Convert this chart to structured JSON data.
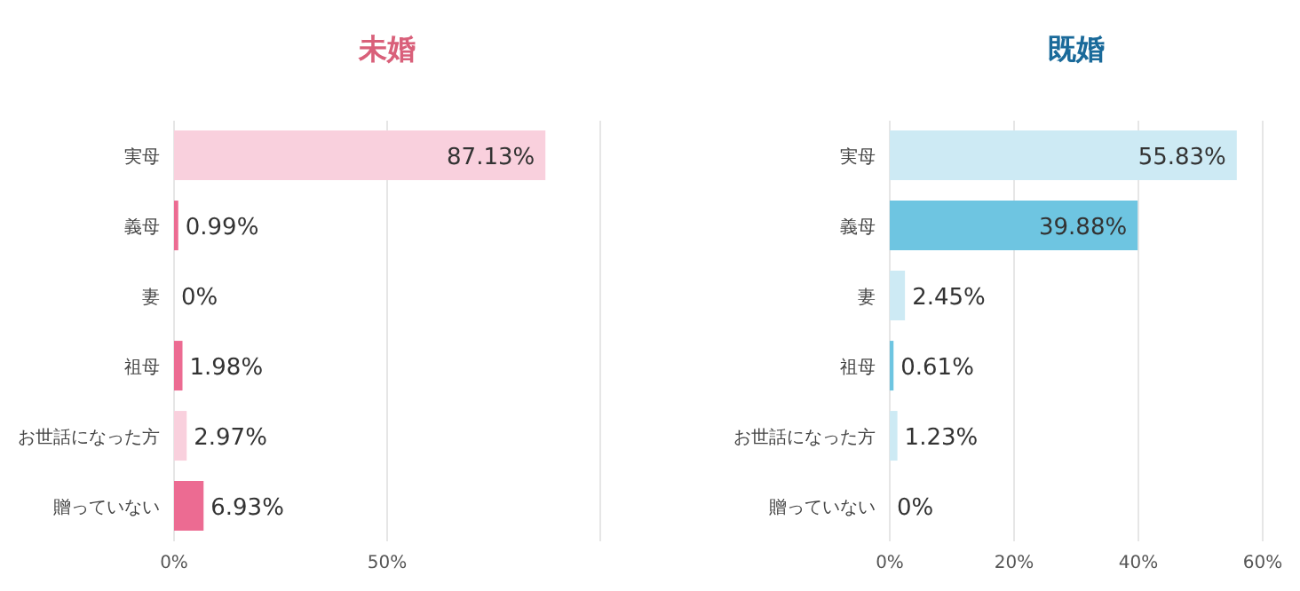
{
  "chart_data": [
    {
      "type": "bar",
      "orientation": "horizontal",
      "title": "未婚",
      "categories": [
        "実母",
        "義母",
        "妻",
        "祖母",
        "お世話になった方",
        "贈っていない"
      ],
      "values": [
        87.13,
        0.99,
        0,
        1.98,
        2.97,
        6.93
      ],
      "colors": [
        "#f9d0dd",
        "#ec6b92",
        "#f9d0dd",
        "#ec6b92",
        "#f9d0dd",
        "#ec6b92"
      ],
      "value_labels": [
        "87.13%",
        "0.99%",
        "0%",
        "1.98%",
        "2.97%",
        "6.93%"
      ],
      "xlim": [
        0,
        100
      ],
      "xticks": [
        {
          "value": 0,
          "label": "0%"
        },
        {
          "value": 50,
          "label": "50%"
        }
      ],
      "grid": "x"
    },
    {
      "type": "bar",
      "orientation": "horizontal",
      "title": "既婚",
      "categories": [
        "実母",
        "義母",
        "妻",
        "祖母",
        "お世話になった方",
        "贈っていない"
      ],
      "values": [
        55.83,
        39.88,
        2.45,
        0.61,
        1.23,
        0
      ],
      "colors": [
        "#cdeaf4",
        "#6ec5e1",
        "#cdeaf4",
        "#6ec5e1",
        "#cdeaf4",
        "#6ec5e1"
      ],
      "value_labels": [
        "55.83%",
        "39.88%",
        "2.45%",
        "0.61%",
        "1.23%",
        "0%"
      ],
      "xlim": [
        0,
        60
      ],
      "xticks": [
        {
          "value": 0,
          "label": "0%"
        },
        {
          "value": 20,
          "label": "20%"
        },
        {
          "value": 40,
          "label": "40%"
        },
        {
          "value": 60,
          "label": "60%"
        }
      ],
      "grid": "x"
    }
  ]
}
